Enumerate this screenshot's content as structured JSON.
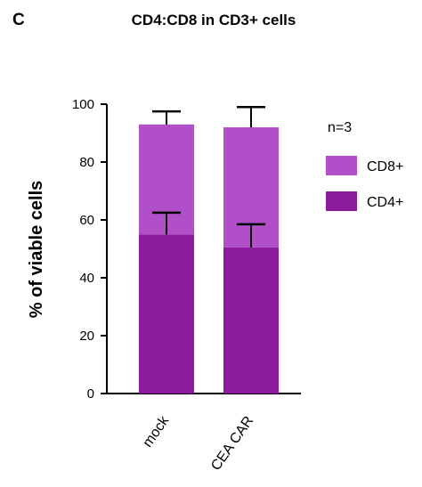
{
  "panel_letter": "C",
  "chart_data": {
    "type": "bar",
    "stacked": true,
    "title": "CD4:CD8 in CD3+ cells",
    "xlabel": "",
    "ylabel": "% of viable cells",
    "ylim": [
      0,
      100
    ],
    "yticks": [
      0,
      20,
      40,
      60,
      80,
      100
    ],
    "categories": [
      "mock",
      "CEA CAR"
    ],
    "series": [
      {
        "name": "CD4+",
        "color": "#8b1a9c",
        "values": [
          55,
          50.5
        ],
        "errors": [
          7.5,
          8
        ]
      },
      {
        "name": "CD8+",
        "color": "#b04fc8",
        "values": [
          38,
          41.5
        ],
        "errors": [
          4.5,
          7
        ]
      }
    ],
    "annotation": "n=3",
    "legend_position": "right",
    "grid": false
  }
}
